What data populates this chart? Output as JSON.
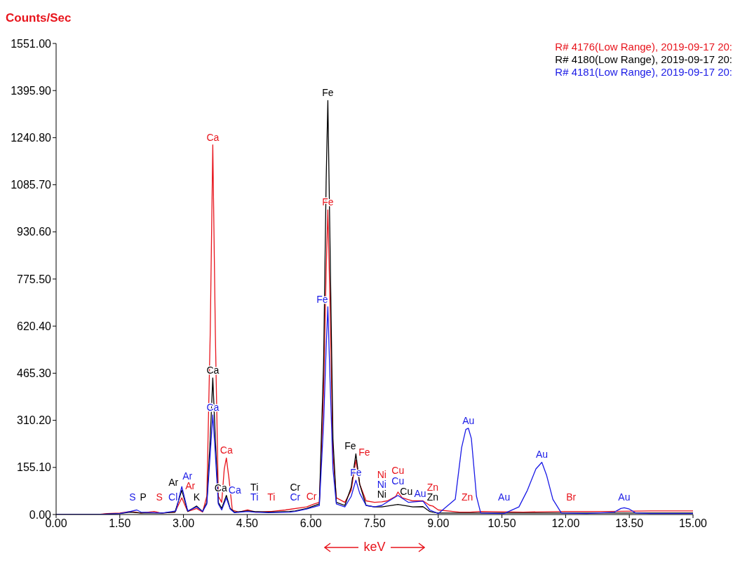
{
  "chart_data": {
    "type": "line",
    "xlabel": "keV",
    "ylabel": "Counts/Sec",
    "legend": "top right",
    "grid": false,
    "marker": "none",
    "line_style": "solid",
    "xlim": [
      0,
      15
    ],
    "xticks": [
      {
        "value": 0,
        "label": "0.00"
      },
      {
        "value": 1.5,
        "label": "1.50"
      },
      {
        "value": 3,
        "label": "3.00"
      },
      {
        "value": 4.5,
        "label": "4.50"
      },
      {
        "value": 6,
        "label": "6.00"
      },
      {
        "value": 7.5,
        "label": "7.50"
      },
      {
        "value": 9,
        "label": "9.00"
      },
      {
        "value": 10.5,
        "label": "10.50"
      },
      {
        "value": 12,
        "label": "12.00"
      },
      {
        "value": 13.5,
        "label": "13.50"
      },
      {
        "value": 15,
        "label": "15.00"
      }
    ],
    "ylim": [
      0,
      1551
    ],
    "yticks": [
      {
        "value": 0,
        "label": "0.00"
      },
      {
        "value": 155.1,
        "label": "155.10"
      },
      {
        "value": 310.2,
        "label": "310.20"
      },
      {
        "value": 465.3,
        "label": "465.30"
      },
      {
        "value": 620.4,
        "label": "620.40"
      },
      {
        "value": 775.5,
        "label": "775.50"
      },
      {
        "value": 930.6,
        "label": "930.60"
      },
      {
        "value": 1085.7,
        "label": "1085.70"
      },
      {
        "value": 1240.8,
        "label": "1240.80"
      },
      {
        "value": 1395.9,
        "label": "1395.90"
      },
      {
        "value": 1551,
        "label": "1551.00"
      }
    ],
    "series": [
      {
        "name": "R# 4176(Low Range), 2019-09-17 20:",
        "color": "#e8141c",
        "x": [
          0,
          1,
          1.2,
          1.5,
          1.75,
          2,
          2.31,
          2.43,
          2.5,
          2.8,
          2.96,
          3.1,
          3.31,
          3.45,
          3.55,
          3.63,
          3.69,
          3.75,
          3.82,
          3.9,
          3.96,
          4.01,
          4.07,
          4.15,
          4.3,
          4.51,
          4.7,
          5,
          5.07,
          5.4,
          5.9,
          6.08,
          6.2,
          6.3,
          6.36,
          6.4,
          6.45,
          6.52,
          6.6,
          6.8,
          6.95,
          7.06,
          7.15,
          7.3,
          7.5,
          7.67,
          7.8,
          8,
          8.05,
          8.15,
          8.4,
          8.64,
          8.8,
          8.87,
          9,
          9.5,
          9.75,
          10,
          11,
          12,
          12.13,
          13,
          14,
          15
        ],
        "values": [
          0,
          0,
          3,
          5,
          10,
          5,
          10,
          6,
          5,
          8,
          55,
          10,
          20,
          8,
          60,
          600,
          1217,
          600,
          60,
          40,
          150,
          186,
          120,
          15,
          8,
          15,
          8,
          10,
          10,
          15,
          25,
          35,
          40,
          400,
          800,
          1003,
          700,
          200,
          55,
          40,
          80,
          179,
          100,
          45,
          40,
          42,
          45,
          60,
          74,
          55,
          45,
          45,
          30,
          28,
          15,
          8,
          8,
          10,
          8,
          10,
          10,
          10,
          12,
          12
        ],
        "value_labels": [
          null,
          null,
          null,
          null,
          null,
          null,
          null,
          "S",
          null,
          null,
          "Ar",
          null,
          null,
          null,
          null,
          null,
          "Ca",
          null,
          null,
          null,
          null,
          "Ca",
          null,
          null,
          null,
          null,
          null,
          null,
          "Ti",
          null,
          null,
          "Cr",
          null,
          null,
          null,
          "Fe",
          null,
          null,
          null,
          null,
          null,
          "Fe",
          null,
          null,
          null,
          "Ni",
          null,
          null,
          "Cu",
          null,
          null,
          null,
          null,
          "Zn",
          null,
          null,
          "Zn",
          null,
          null,
          null,
          "Br",
          null,
          null,
          null
        ]
      },
      {
        "name": "R# 4180(Low Range), 2019-09-17 20:",
        "color": "#000000",
        "x": [
          0,
          1,
          1.5,
          1.75,
          2,
          2.05,
          2.5,
          2.8,
          2.96,
          3.1,
          3.31,
          3.45,
          3.55,
          3.63,
          3.69,
          3.75,
          3.82,
          3.9,
          4.01,
          4.1,
          4.2,
          4.51,
          4.67,
          5,
          5.5,
          5.63,
          5.9,
          6.2,
          6.3,
          6.36,
          6.4,
          6.45,
          6.52,
          6.6,
          6.8,
          6.95,
          7.06,
          7.15,
          7.3,
          7.5,
          7.67,
          8.05,
          8.4,
          8.64,
          8.8,
          8.87,
          9,
          10,
          15
        ],
        "values": [
          0,
          0,
          3,
          8,
          5,
          5,
          5,
          8,
          80,
          10,
          28,
          10,
          40,
          250,
          450,
          250,
          40,
          20,
          63,
          20,
          8,
          12,
          10,
          8,
          10,
          12,
          20,
          35,
          500,
          1100,
          1363,
          900,
          250,
          40,
          30,
          90,
          200,
          100,
          30,
          25,
          25,
          33,
          25,
          26,
          10,
          8,
          5,
          5,
          5
        ],
        "value_labels": [
          null,
          null,
          null,
          null,
          null,
          "P",
          null,
          null,
          "Ar",
          null,
          "K",
          null,
          null,
          null,
          "Ca",
          null,
          null,
          null,
          "Ca",
          null,
          null,
          null,
          "Ti",
          null,
          null,
          "Cr",
          null,
          null,
          null,
          null,
          "Fe",
          null,
          null,
          null,
          null,
          null,
          "Fe",
          null,
          null,
          null,
          "Ni",
          "Cu",
          null,
          null,
          null,
          "Zn",
          null,
          null,
          null
        ]
      },
      {
        "name": "R# 4181(Low Range), 2019-09-17 20:",
        "color": "#1a1ae6",
        "x": [
          0,
          1,
          1.5,
          1.75,
          1.8,
          1.9,
          2,
          2.5,
          2.82,
          2.96,
          3.1,
          3.31,
          3.45,
          3.55,
          3.63,
          3.69,
          3.75,
          3.82,
          3.9,
          4.01,
          4.1,
          4.2,
          4.51,
          4.67,
          5,
          5.5,
          5.63,
          5.9,
          6.2,
          6.3,
          6.36,
          6.4,
          6.45,
          6.52,
          6.6,
          6.8,
          6.95,
          7.06,
          7.15,
          7.3,
          7.5,
          7.67,
          8.05,
          8.3,
          8.64,
          8.8,
          9,
          9.4,
          9.55,
          9.65,
          9.71,
          9.78,
          9.9,
          10,
          10.5,
          10.55,
          10.9,
          11.1,
          11.3,
          11.44,
          11.55,
          11.7,
          11.9,
          12.5,
          13.15,
          13.3,
          13.38,
          13.5,
          13.65,
          14,
          15
        ],
        "values": [
          0,
          0,
          3,
          10,
          12,
          15,
          8,
          5,
          12,
          92,
          12,
          25,
          10,
          35,
          200,
          328,
          200,
          35,
          15,
          55,
          18,
          6,
          10,
          8,
          6,
          8,
          10,
          18,
          30,
          300,
          550,
          684,
          450,
          150,
          35,
          25,
          60,
          113,
          70,
          30,
          25,
          30,
          63,
          40,
          44,
          15,
          3,
          50,
          220,
          280,
          284,
          250,
          60,
          5,
          3,
          3,
          25,
          80,
          150,
          172,
          130,
          50,
          5,
          3,
          8,
          20,
          22,
          18,
          5,
          3,
          3
        ],
        "value_labels": [
          null,
          null,
          null,
          null,
          "S",
          null,
          null,
          null,
          "Cl",
          "Ar",
          null,
          null,
          null,
          null,
          null,
          "Ca",
          null,
          null,
          null,
          "Ca",
          null,
          null,
          null,
          "Ti",
          null,
          null,
          "Cr",
          null,
          null,
          null,
          null,
          "Fe",
          null,
          null,
          null,
          null,
          null,
          "Fe",
          null,
          null,
          null,
          "Ni",
          "Cu",
          null,
          "Au",
          null,
          null,
          null,
          null,
          null,
          "Au",
          null,
          null,
          null,
          null,
          "Au",
          null,
          null,
          null,
          "Au",
          null,
          null,
          null,
          null,
          null,
          null,
          "Au",
          null,
          null,
          null,
          null
        ]
      }
    ]
  }
}
